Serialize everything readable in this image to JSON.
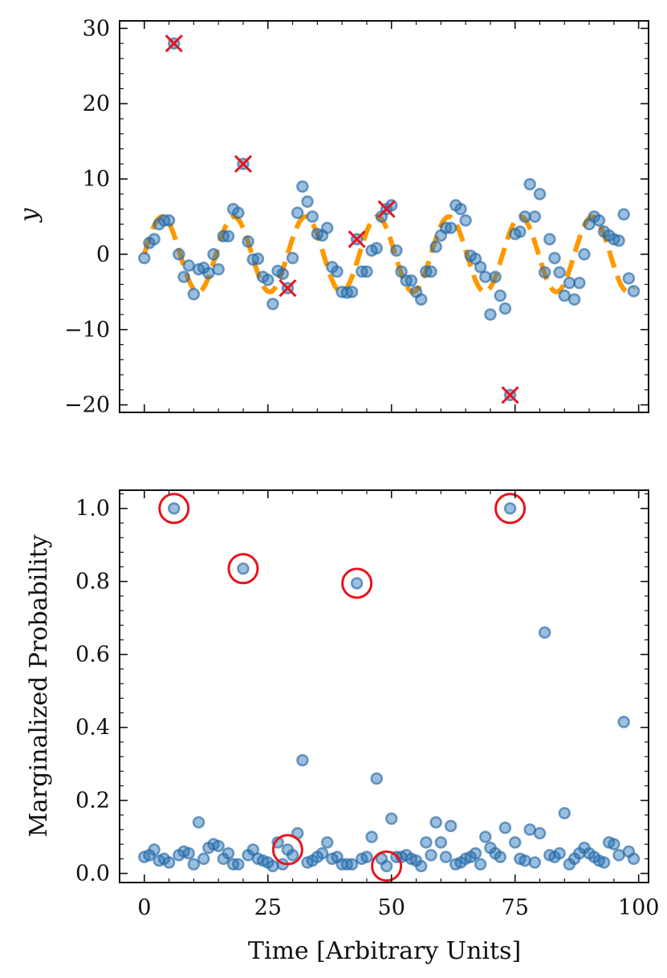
{
  "chart_data": [
    {
      "type": "scatter",
      "panel": "top",
      "title": "",
      "xlabel": "",
      "ylabel": "y",
      "xlim": [
        -5,
        102
      ],
      "ylim": [
        -21,
        31
      ],
      "yticks": [
        {
          "value": -20,
          "label": "−20"
        },
        {
          "value": -10,
          "label": "−10"
        },
        {
          "value": 0,
          "label": "0"
        },
        {
          "value": 10,
          "label": "10"
        },
        {
          "value": 20,
          "label": "20"
        },
        {
          "value": 30,
          "label": "30"
        }
      ],
      "grid": false,
      "series": [
        {
          "name": "observations",
          "kind": "points",
          "color": "#4a86c0",
          "x": [
            0,
            1,
            2,
            3,
            4,
            5,
            6,
            7,
            8,
            9,
            10,
            11,
            12,
            13,
            14,
            15,
            16,
            17,
            18,
            19,
            20,
            21,
            22,
            23,
            24,
            25,
            26,
            27,
            28,
            29,
            30,
            31,
            32,
            33,
            34,
            35,
            36,
            37,
            38,
            39,
            40,
            41,
            42,
            43,
            44,
            45,
            46,
            47,
            48,
            49,
            50,
            51,
            52,
            53,
            54,
            55,
            56,
            57,
            58,
            59,
            60,
            61,
            62,
            63,
            64,
            65,
            66,
            67,
            68,
            69,
            70,
            71,
            72,
            73,
            74,
            75,
            76,
            77,
            78,
            79,
            80,
            81,
            82,
            83,
            84,
            85,
            86,
            87,
            88,
            89,
            90,
            91,
            92,
            93,
            94,
            95,
            96,
            97,
            98,
            99
          ],
          "y": [
            -0.5,
            1.5,
            2,
            4,
            4.5,
            4.5,
            28,
            0,
            -3,
            -1.5,
            -5.3,
            -2,
            -1.8,
            -2.5,
            0,
            -2,
            2.4,
            2.4,
            6,
            5.5,
            12,
            1.7,
            -0.7,
            -0.6,
            -3,
            -3.4,
            -6.6,
            -2.2,
            -2.6,
            -4.5,
            -0.5,
            5.5,
            9,
            7,
            5,
            2.7,
            2.5,
            3.5,
            -1.7,
            -2.3,
            -5,
            -5.1,
            -5,
            2,
            -2.3,
            -2.3,
            0.5,
            0.8,
            5,
            6,
            6.5,
            0.5,
            -2.3,
            -3.5,
            -3.5,
            -5,
            -6,
            -2.3,
            -2.3,
            1,
            2.5,
            3.5,
            3.5,
            6.5,
            6,
            4.5,
            -0.2,
            -0.6,
            -1.7,
            -3,
            -8,
            -3,
            -5.5,
            -7.2,
            -18.7,
            2.7,
            3,
            5,
            9.3,
            5,
            8,
            -2.4,
            2,
            -0.5,
            -2.4,
            -5.5,
            -3.8,
            -6,
            -3.8,
            0,
            4,
            5,
            4.5,
            3,
            2.5,
            2,
            1.8,
            5.3,
            -3.2,
            -4.9
          ]
        },
        {
          "name": "model",
          "kind": "dashed-line",
          "color": "#ff9900",
          "model": "A*sin(2*pi*x/P)",
          "amplitude": 5,
          "period": 14.5
        },
        {
          "name": "flagged outliers",
          "kind": "x-markers",
          "color": "#e8141e",
          "x": [
            6,
            20,
            29,
            43,
            49,
            74
          ],
          "y": [
            28,
            12,
            -4.5,
            2,
            6,
            -18.7
          ]
        }
      ]
    },
    {
      "type": "scatter",
      "panel": "bottom",
      "title": "",
      "xlabel": "Time [Arbitrary Units]",
      "ylabel": "Marginalized Probability",
      "xlim": [
        -5,
        102
      ],
      "ylim": [
        -0.025,
        1.05
      ],
      "xticks": [
        {
          "value": 0,
          "label": "0"
        },
        {
          "value": 25,
          "label": "25"
        },
        {
          "value": 50,
          "label": "50"
        },
        {
          "value": 75,
          "label": "75"
        },
        {
          "value": 100,
          "label": "100"
        }
      ],
      "yticks": [
        {
          "value": 0,
          "label": "0.0"
        },
        {
          "value": 0.2,
          "label": "0.2"
        },
        {
          "value": 0.4,
          "label": "0.4"
        },
        {
          "value": 0.6,
          "label": "0.6"
        },
        {
          "value": 0.8,
          "label": "0.8"
        },
        {
          "value": 1.0,
          "label": "1.0"
        }
      ],
      "grid": false,
      "series": [
        {
          "name": "probability",
          "kind": "points",
          "color": "#4a86c0",
          "x": [
            0,
            1,
            2,
            3,
            4,
            5,
            6,
            7,
            8,
            9,
            10,
            11,
            12,
            13,
            14,
            15,
            16,
            17,
            18,
            19,
            20,
            21,
            22,
            23,
            24,
            25,
            26,
            27,
            28,
            29,
            30,
            31,
            32,
            33,
            34,
            35,
            36,
            37,
            38,
            39,
            40,
            41,
            42,
            43,
            44,
            45,
            46,
            47,
            48,
            49,
            50,
            51,
            52,
            53,
            54,
            55,
            56,
            57,
            58,
            59,
            60,
            61,
            62,
            63,
            64,
            65,
            66,
            67,
            68,
            69,
            70,
            71,
            72,
            73,
            74,
            75,
            76,
            77,
            78,
            79,
            80,
            81,
            82,
            83,
            84,
            85,
            86,
            87,
            88,
            89,
            90,
            91,
            92,
            93,
            94,
            95,
            96,
            97,
            98,
            99
          ],
          "y": [
            0.045,
            0.05,
            0.065,
            0.035,
            0.04,
            0.03,
            1.0,
            0.05,
            0.06,
            0.055,
            0.025,
            0.14,
            0.04,
            0.07,
            0.08,
            0.075,
            0.04,
            0.055,
            0.025,
            0.025,
            0.835,
            0.05,
            0.065,
            0.04,
            0.035,
            0.03,
            0.02,
            0.085,
            0.025,
            0.065,
            0.05,
            0.11,
            0.31,
            0.03,
            0.035,
            0.045,
            0.055,
            0.085,
            0.04,
            0.045,
            0.025,
            0.025,
            0.025,
            0.795,
            0.04,
            0.045,
            0.1,
            0.26,
            0.04,
            0.02,
            0.15,
            0.045,
            0.045,
            0.05,
            0.04,
            0.035,
            0.02,
            0.085,
            0.05,
            0.14,
            0.085,
            0.045,
            0.13,
            0.025,
            0.03,
            0.04,
            0.045,
            0.055,
            0.025,
            0.1,
            0.07,
            0.055,
            0.045,
            0.125,
            1.0,
            0.085,
            0.04,
            0.035,
            0.12,
            0.03,
            0.11,
            0.66,
            0.05,
            0.045,
            0.055,
            0.165,
            0.025,
            0.04,
            0.055,
            0.07,
            0.055,
            0.045,
            0.035,
            0.03,
            0.085,
            0.08,
            0.05,
            0.415,
            0.06,
            0.04
          ]
        },
        {
          "name": "flagged outliers",
          "kind": "circle-markers",
          "color": "#e8141e",
          "x": [
            6,
            20,
            29,
            43,
            49,
            74
          ],
          "y": [
            1.0,
            0.835,
            0.065,
            0.795,
            0.02,
            1.0
          ]
        }
      ]
    }
  ]
}
